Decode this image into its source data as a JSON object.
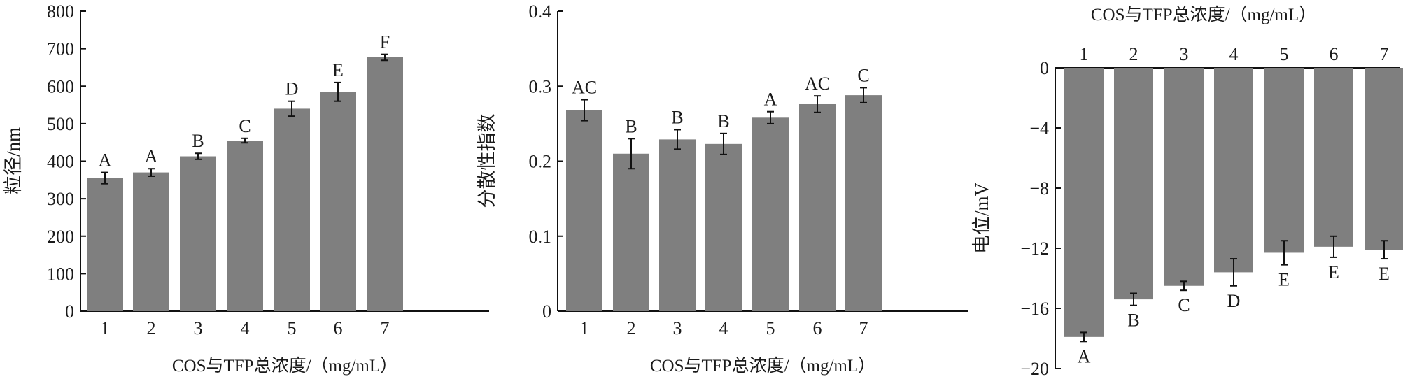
{
  "colors": {
    "bar": "#7f7f7f",
    "axis": "#111111",
    "text": "#1a1a1a"
  },
  "chart_data": [
    {
      "type": "bar",
      "title": "",
      "categories": [
        "1",
        "2",
        "3",
        "4",
        "5",
        "6",
        "7"
      ],
      "values": [
        355,
        370,
        413,
        455,
        540,
        585,
        677
      ],
      "errors": [
        15,
        10,
        8,
        6,
        20,
        25,
        8
      ],
      "letters": [
        "A",
        "A",
        "B",
        "C",
        "D",
        "E",
        "F"
      ],
      "xlabel": "COS与TFP总浓度/（mg/mL）",
      "ylabel": "粒径/nm",
      "ylim": [
        0,
        800
      ],
      "yticks": [
        0,
        100,
        200,
        300,
        400,
        500,
        600,
        700,
        800
      ],
      "grid": false
    },
    {
      "type": "bar",
      "title": "",
      "categories": [
        "1",
        "2",
        "3",
        "4",
        "5",
        "6",
        "7"
      ],
      "values": [
        0.268,
        0.21,
        0.229,
        0.223,
        0.258,
        0.276,
        0.288
      ],
      "errors": [
        0.014,
        0.02,
        0.013,
        0.014,
        0.008,
        0.011,
        0.01
      ],
      "letters": [
        "AC",
        "B",
        "B",
        "B",
        "A",
        "AC",
        "C"
      ],
      "xlabel": "COS与TFP总浓度/（mg/mL）",
      "ylabel": "分散性指数",
      "ylim": [
        0,
        0.4
      ],
      "yticks": [
        0,
        0.1,
        0.2,
        0.3,
        0.4
      ],
      "grid": false
    },
    {
      "type": "bar",
      "title": "",
      "categories": [
        "1",
        "2",
        "3",
        "4",
        "5",
        "6",
        "7"
      ],
      "values": [
        -17.9,
        -15.4,
        -14.5,
        -13.6,
        -12.3,
        -11.9,
        -12.1
      ],
      "errors": [
        0.3,
        0.4,
        0.3,
        0.9,
        0.8,
        0.7,
        0.6
      ],
      "letters": [
        "A",
        "B",
        "C",
        "D",
        "E",
        "E",
        "E"
      ],
      "xlabel": "COS与TFP总浓度/（mg/mL）",
      "xaxis_position": "top",
      "ylabel": "电位/mV",
      "ylim": [
        -20,
        0
      ],
      "yticks": [
        0,
        -4,
        -8,
        -12,
        -16,
        -20
      ],
      "ytick_labels": [
        "0",
        "−4",
        "−8",
        "−12",
        "−16",
        "−20"
      ],
      "grid": false
    }
  ]
}
